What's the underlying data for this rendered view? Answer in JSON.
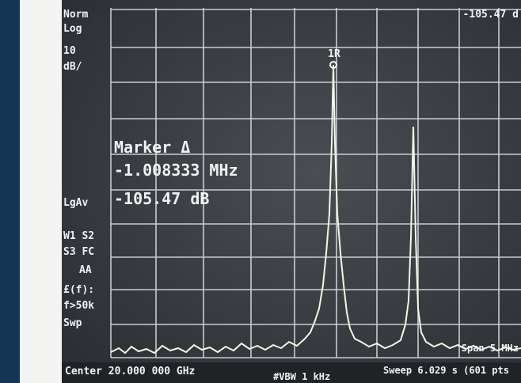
{
  "top_readout": "-105.47 d",
  "left_panel": [
    "Norm",
    "Log",
    "10",
    "dB/",
    "LgAv",
    "W1  S2",
    "S3  FC",
    "AA",
    "£(f):",
    "f>50k",
    "Swp"
  ],
  "marker": {
    "tag": "1R",
    "title": "Marker Δ",
    "frequency": "-1.008333 MHz",
    "amplitude": "-105.47 dB"
  },
  "status": {
    "center": "Center 20.000 000 GHz",
    "vbw": "#VBW 1 kHz",
    "sweep": "Sweep 6.029 s (601 pts",
    "span": "Span 5 MHz"
  }
}
